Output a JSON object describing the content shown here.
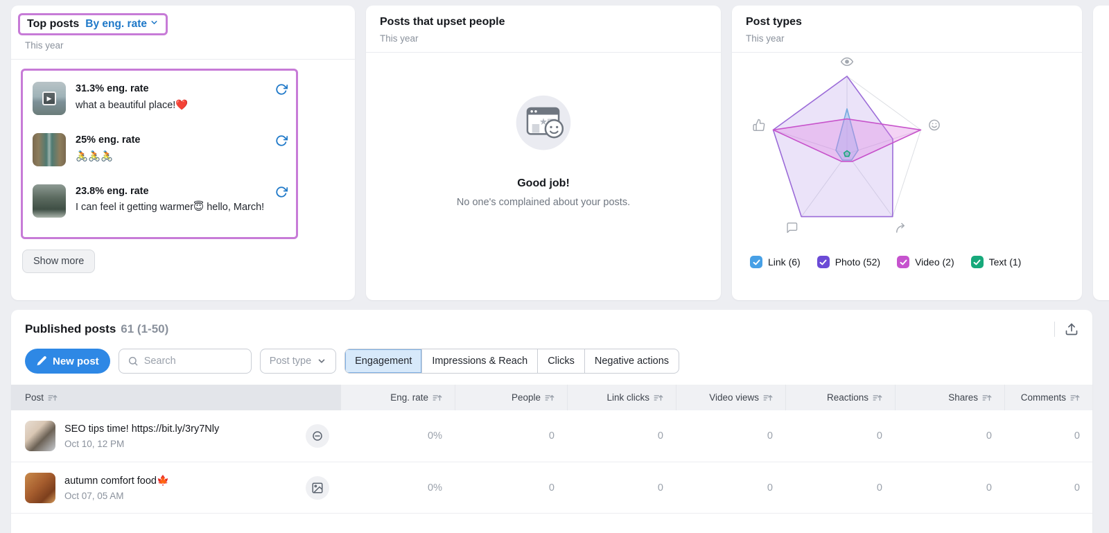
{
  "cards": {
    "top_posts": {
      "title": "Top posts",
      "filter_label": "By eng. rate",
      "subtitle": "This year",
      "posts": [
        {
          "rate": "31.3% eng. rate",
          "caption": "what a beautiful place!❤️",
          "has_video_badge": true
        },
        {
          "rate": "25% eng. rate",
          "caption": "🚴🚴🚴",
          "has_video_badge": false
        },
        {
          "rate": "23.8% eng. rate",
          "caption": "I can feel it getting warmer😇 hello, March!",
          "has_video_badge": false
        }
      ],
      "show_more_label": "Show more"
    },
    "upset_posts": {
      "title": "Posts that upset people",
      "subtitle": "This year",
      "empty_title": "Good job!",
      "empty_message": "No one's complained about your posts."
    },
    "post_types": {
      "title": "Post types",
      "subtitle": "This year",
      "legend": [
        {
          "label": "Link (6)",
          "color": "#47A0E6",
          "checked": true
        },
        {
          "label": "Photo (52)",
          "color": "#6B4BD6",
          "checked": true
        },
        {
          "label": "Video (2)",
          "color": "#C653CE",
          "checked": true
        },
        {
          "label": "Text (1)",
          "color": "#17A97B",
          "checked": true
        }
      ]
    }
  },
  "chart_data": {
    "type": "radar",
    "title": "Post types",
    "axes": [
      "views",
      "reactions",
      "shares",
      "comments",
      "likes"
    ],
    "axis_icons": [
      "eye-icon",
      "smiley-icon",
      "share-icon",
      "comment-icon",
      "thumb-icon"
    ],
    "max": 1,
    "legend_position": "bottom",
    "series": [
      {
        "name": "Photo",
        "count": 52,
        "stroke": "#9B6BD8",
        "fill": "rgba(157,113,226,0.20)",
        "values": [
          1.0,
          0.62,
          1.0,
          1.0,
          1.0
        ]
      },
      {
        "name": "Link",
        "count": 6,
        "stroke": "#74A9DE",
        "fill": "rgba(150,196,242,0.45)",
        "values": [
          0.58,
          0.15,
          0.1,
          0.1,
          0.15
        ]
      },
      {
        "name": "Video",
        "count": 2,
        "stroke": "#C753CB",
        "fill": "rgba(224,130,226,0.35)",
        "values": [
          0.45,
          1.0,
          0.12,
          0.12,
          1.0
        ]
      },
      {
        "name": "Text",
        "count": 1,
        "stroke": "#17A97B",
        "fill": "rgba(23,169,123,0.25)",
        "values": [
          0.04,
          0.04,
          0.04,
          0.04,
          0.04
        ]
      }
    ]
  },
  "published": {
    "title": "Published posts",
    "count": "61 (1-50)",
    "toolbar": {
      "new_post_label": "New post",
      "search_placeholder": "Search",
      "post_type_label": "Post type",
      "tabs": [
        "Engagement",
        "Impressions & Reach",
        "Clicks",
        "Negative actions"
      ],
      "active_tab": "Engagement"
    },
    "columns": [
      "Post",
      "Eng. rate",
      "People",
      "Link clicks",
      "Video views",
      "Reactions",
      "Shares",
      "Comments"
    ],
    "rows": [
      {
        "title": "SEO tips time! https://bit.ly/3ry7Nly",
        "date": "Oct 10, 12 PM",
        "type_icon": "link-icon",
        "values": [
          "0%",
          "0",
          "0",
          "0",
          "0",
          "0",
          "0"
        ]
      },
      {
        "title": "autumn comfort food🍁",
        "date": "Oct 07, 05 AM",
        "type_icon": "image-icon",
        "values": [
          "0%",
          "0",
          "0",
          "0",
          "0",
          "0",
          "0"
        ]
      }
    ]
  }
}
